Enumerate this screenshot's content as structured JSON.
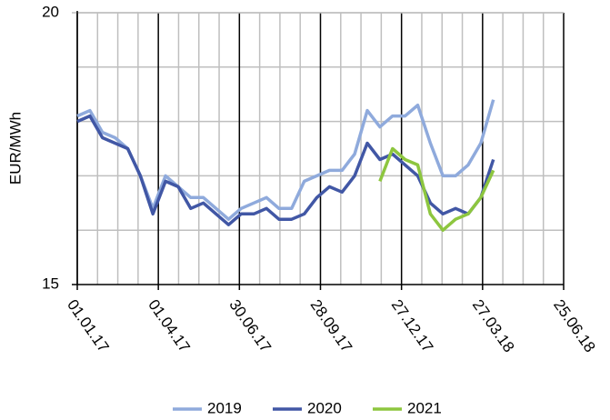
{
  "chart_data": {
    "type": "line",
    "y_label": "EUR/MWh",
    "x": [
      "01.01.17",
      "15.01.17",
      "29.01.17",
      "12.02.17",
      "26.02.17",
      "12.03.17",
      "26.03.17",
      "09.04.17",
      "23.04.17",
      "07.05.17",
      "21.05.17",
      "04.06.17",
      "18.06.17",
      "02.07.17",
      "16.07.17",
      "30.07.17",
      "13.08.17",
      "27.08.17",
      "10.09.17",
      "24.09.17",
      "08.10.17",
      "22.10.17",
      "05.11.17",
      "19.11.17",
      "03.12.17",
      "17.12.17",
      "31.12.17",
      "14.01.18",
      "28.01.18",
      "11.02.18",
      "25.02.18",
      "11.03.18",
      "25.03.18",
      "08.04.18"
    ],
    "series": [
      {
        "name": "2019",
        "color": "#8faadc",
        "values": [
          18.1,
          18.2,
          17.8,
          17.7,
          17.5,
          17.0,
          16.4,
          17.0,
          16.8,
          16.6,
          16.6,
          16.4,
          16.2,
          16.4,
          16.5,
          16.6,
          16.4,
          16.4,
          16.9,
          17.0,
          17.1,
          17.1,
          17.4,
          18.2,
          17.9,
          18.1,
          18.1,
          18.3,
          17.6,
          17.0,
          17.0,
          17.2,
          17.6,
          18.4
        ]
      },
      {
        "name": "2020",
        "color": "#4157a5",
        "values": [
          18.0,
          18.1,
          17.7,
          17.6,
          17.5,
          17.0,
          16.3,
          16.9,
          16.8,
          16.4,
          16.5,
          16.3,
          16.1,
          16.3,
          16.3,
          16.4,
          16.2,
          16.2,
          16.3,
          16.6,
          16.8,
          16.7,
          17.0,
          17.6,
          17.3,
          17.4,
          17.2,
          17.0,
          16.5,
          16.3,
          16.4,
          16.3,
          16.6,
          17.3
        ]
      },
      {
        "name": "2021",
        "color": "#8dc63f",
        "values": [
          null,
          null,
          null,
          null,
          null,
          null,
          null,
          null,
          null,
          null,
          null,
          null,
          null,
          null,
          null,
          null,
          null,
          null,
          null,
          null,
          null,
          null,
          null,
          null,
          16.9,
          17.5,
          17.3,
          17.2,
          16.3,
          16.0,
          16.2,
          16.3,
          16.6,
          17.1
        ]
      }
    ],
    "xlim": [
      "01.01.17",
      "25.06.18"
    ],
    "xticks": [
      "01.01.17",
      "01.04.17",
      "30.06.17",
      "28.09.17",
      "27.12.17",
      "27.03.18",
      "25.06.18"
    ],
    "ylim": [
      15,
      20
    ],
    "yticks": [
      15,
      20
    ],
    "grid": true,
    "legend": "bottom"
  }
}
